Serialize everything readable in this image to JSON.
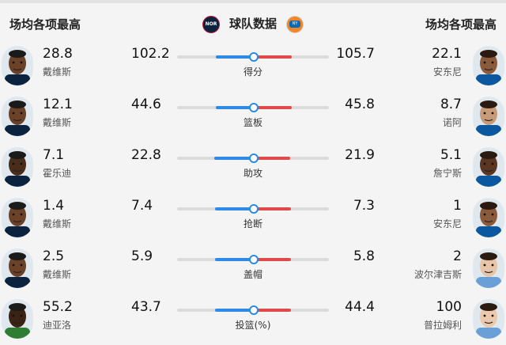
{
  "header": {
    "left_title": "场均各项最高",
    "center_title": "球队数据",
    "right_title": "场均各项最高",
    "left_team_logo": "NOR",
    "right_team_logo": "NY"
  },
  "colors": {
    "left_team": "#2e8ae6",
    "right_team": "#e24a4a",
    "track": "#dcdcdc"
  },
  "rows": [
    {
      "category": "得分",
      "left_player": {
        "name": "戴维斯",
        "value": "28.8",
        "skin": "#6b4128",
        "jersey": "#0c2340"
      },
      "left_team": "102.2",
      "right_team": "105.7",
      "right_player": {
        "name": "安东尼",
        "value": "22.1",
        "skin": "#8a5a3a",
        "jersey": "#0b57a0"
      },
      "left_ratio": 0.49
    },
    {
      "category": "篮板",
      "left_player": {
        "name": "戴维斯",
        "value": "12.1",
        "skin": "#6b4128",
        "jersey": "#0c2340"
      },
      "left_team": "44.6",
      "right_team": "45.8",
      "right_player": {
        "name": "诺阿",
        "value": "8.7",
        "skin": "#c89a78",
        "jersey": "#0b57a0"
      },
      "left_ratio": 0.49
    },
    {
      "category": "助攻",
      "left_player": {
        "name": "霍乐迪",
        "value": "7.1",
        "skin": "#4a2c1a",
        "jersey": "#0c2340"
      },
      "left_team": "22.8",
      "right_team": "21.9",
      "right_player": {
        "name": "詹宁斯",
        "value": "5.1",
        "skin": "#5a3522",
        "jersey": "#0b57a0"
      },
      "left_ratio": 0.51
    },
    {
      "category": "抢断",
      "left_player": {
        "name": "戴维斯",
        "value": "1.4",
        "skin": "#6b4128",
        "jersey": "#0c2340"
      },
      "left_team": "7.4",
      "right_team": "7.3",
      "right_player": {
        "name": "安东尼",
        "value": "1",
        "skin": "#8a5a3a",
        "jersey": "#0b57a0"
      },
      "left_ratio": 0.5
    },
    {
      "category": "盖帽",
      "left_player": {
        "name": "戴维斯",
        "value": "2.5",
        "skin": "#6b4128",
        "jersey": "#0c2340"
      },
      "left_team": "5.9",
      "right_team": "5.8",
      "right_player": {
        "name": "波尔津吉斯",
        "value": "2",
        "skin": "#e8c4a8",
        "jersey": "#6aa0d8"
      },
      "left_ratio": 0.5
    },
    {
      "category": "投篮(%)",
      "left_player": {
        "name": "迪亚洛",
        "value": "55.2",
        "skin": "#3a2214",
        "jersey": "#2e7d32"
      },
      "left_team": "43.7",
      "right_team": "44.4",
      "right_player": {
        "name": "普拉姆利",
        "value": "100",
        "skin": "#ecc8ac",
        "jersey": "#6aa0d8"
      },
      "left_ratio": 0.5
    }
  ]
}
